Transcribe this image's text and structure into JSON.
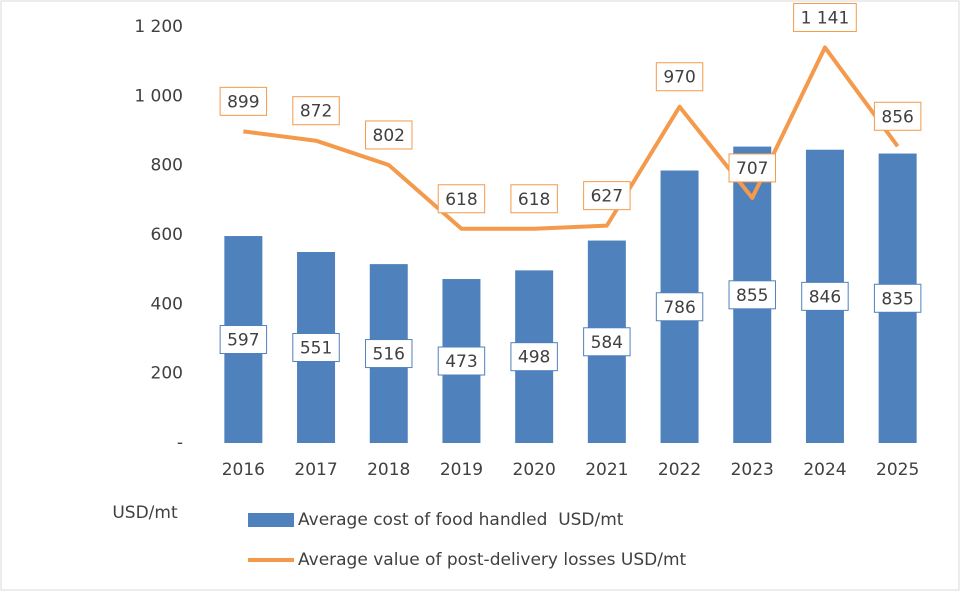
{
  "chart_data": {
    "type": "combo",
    "y_label": "USD/mt",
    "categories": [
      "2016",
      "2017",
      "2018",
      "2019",
      "2020",
      "2021",
      "2022",
      "2023",
      "2024",
      "2025"
    ],
    "series": [
      {
        "name": "Average cost of food handled  USD/mt",
        "type": "bar",
        "color": "#4f81bd",
        "values": [
          597,
          551,
          516,
          473,
          498,
          584,
          786,
          855,
          846,
          835
        ]
      },
      {
        "name": "Average value of post-delivery losses USD/mt",
        "type": "line",
        "color": "#f39a4c",
        "values": [
          899,
          872,
          802,
          618,
          618,
          627,
          970,
          707,
          1141,
          856
        ],
        "value_labels": [
          "899",
          "872",
          "802",
          "618",
          "618",
          "627",
          "970",
          "707",
          "1 141",
          "856"
        ]
      }
    ],
    "ylim": [
      0,
      1200
    ],
    "yticks": [
      {
        "value": 0,
        "label": "-"
      },
      200,
      400,
      600,
      800,
      {
        "value": 1000,
        "label": "1 000"
      },
      {
        "value": 1200,
        "label": "1 200"
      }
    ],
    "grid": false
  }
}
